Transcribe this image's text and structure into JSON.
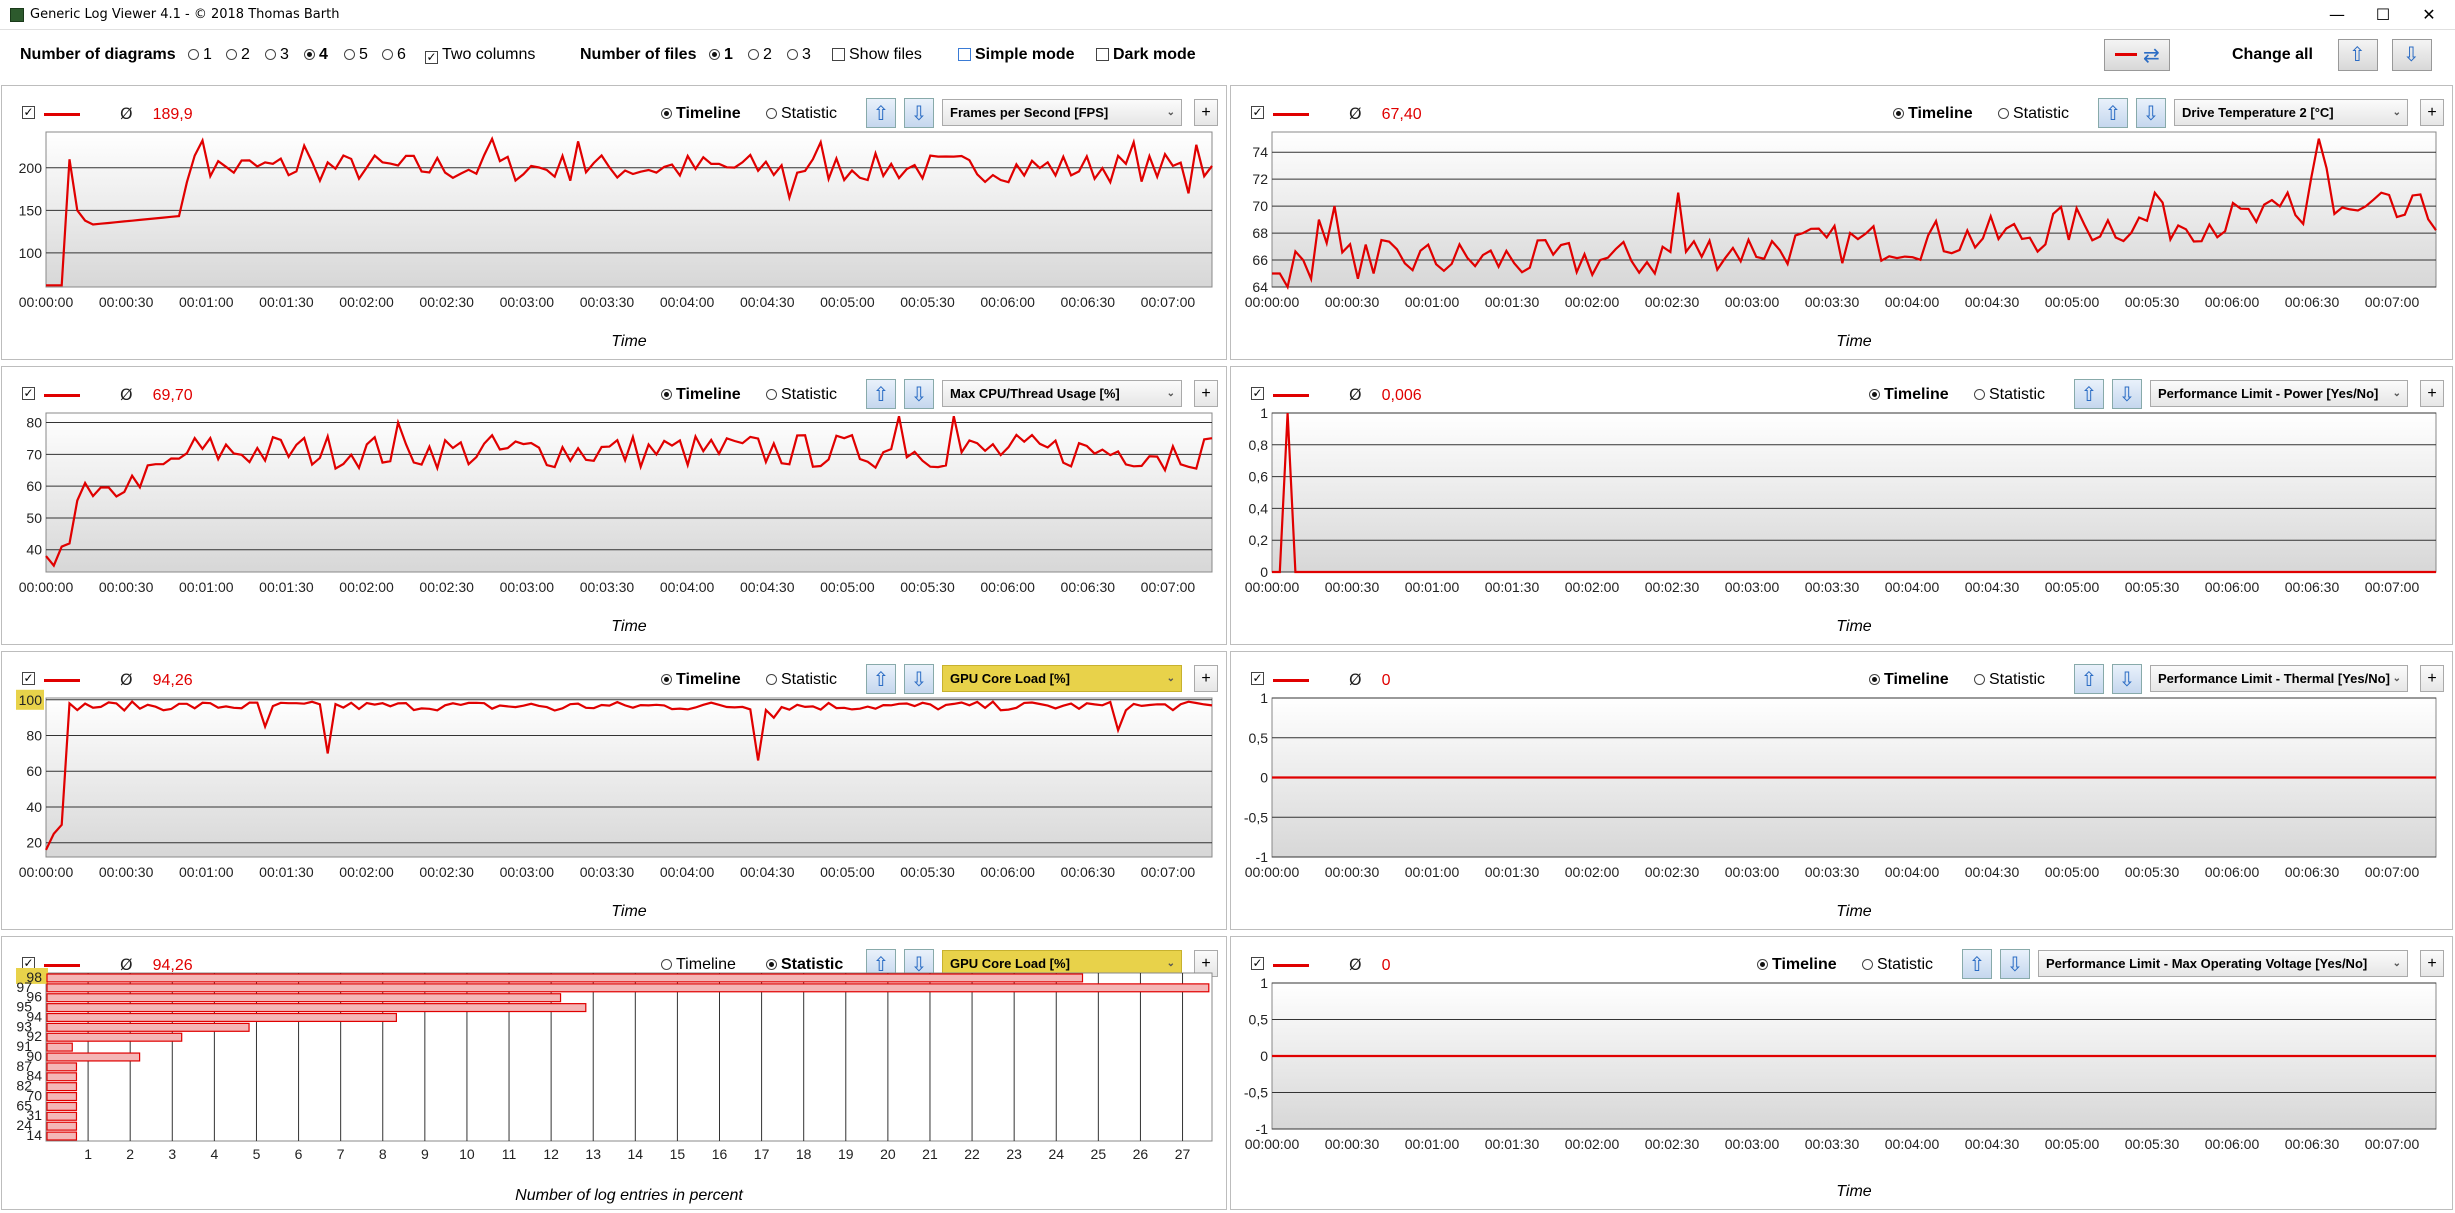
{
  "window": {
    "title": "Generic Log Viewer 4.1 - © 2018 Thomas Barth",
    "min": "—",
    "max": "☐",
    "close": "✕"
  },
  "toolbar": {
    "diagrams_label": "Number of diagrams",
    "diagram_options": [
      "1",
      "2",
      "3",
      "4",
      "5",
      "6"
    ],
    "diagram_selected": "4",
    "two_columns": "Two columns",
    "files_label": "Number of files",
    "file_options": [
      "1",
      "2",
      "3"
    ],
    "file_selected": "1",
    "show_files": "Show files",
    "simple_mode": "Simple mode",
    "dark_mode": "Dark mode",
    "change_all": "Change all"
  },
  "colors": {
    "series": "#e00000",
    "highlight": "#e8d24a",
    "arrow": "#2b6cc4"
  },
  "ui": {
    "timeline": "Timeline",
    "statistic": "Statistic",
    "avg": "Ø",
    "plus": "+",
    "x_title": "Time",
    "stat_x_title": "Number of log entries in percent"
  },
  "time_ticks": [
    "00:00:00",
    "00:00:30",
    "00:01:00",
    "00:01:30",
    "00:02:00",
    "00:02:30",
    "00:03:00",
    "00:03:30",
    "00:04:00",
    "00:04:30",
    "00:05:00",
    "00:05:30",
    "00:06:00",
    "00:06:30",
    "00:07:00"
  ],
  "panels": [
    {
      "metric": "Frames per Second [FPS]",
      "avg": "189,9",
      "mode": "Timeline",
      "highlight": false,
      "x_title": "Time",
      "chart_data": {
        "type": "line",
        "ylim": [
          60,
          242
        ],
        "yticks": [
          "100",
          "150",
          "200"
        ],
        "yvals": [
          100,
          150,
          200
        ],
        "shape": "fps",
        "base": 205,
        "amp": 14
      }
    },
    {
      "metric": "Drive Temperature 2 [°C]",
      "avg": "67,40",
      "mode": "Timeline",
      "highlight": false,
      "x_title": "Time",
      "chart_data": {
        "type": "line",
        "ylim": [
          64,
          75.5
        ],
        "yticks": [
          "64",
          "66",
          "68",
          "70",
          "72",
          "74"
        ],
        "yvals": [
          64,
          66,
          68,
          70,
          72,
          74
        ],
        "shape": "temp"
      }
    },
    {
      "metric": "Max CPU/Thread Usage [%]",
      "avg": "69,70",
      "mode": "Timeline",
      "highlight": false,
      "x_title": "Time",
      "chart_data": {
        "type": "line",
        "ylim": [
          33,
          83
        ],
        "yticks": [
          "40",
          "50",
          "60",
          "70",
          "80"
        ],
        "yvals": [
          40,
          50,
          60,
          70,
          80
        ],
        "shape": "cpu"
      }
    },
    {
      "metric": "Performance Limit - Power [Yes/No]",
      "avg": "0,006",
      "mode": "Timeline",
      "highlight": false,
      "x_title": "Time",
      "chart_data": {
        "type": "line",
        "ylim": [
          0,
          1
        ],
        "yticks": [
          "0",
          "0,2",
          "0,4",
          "0,6",
          "0,8",
          "1"
        ],
        "yvals": [
          0,
          0.2,
          0.4,
          0.6,
          0.8,
          1
        ],
        "shape": "power"
      }
    },
    {
      "metric": "GPU Core Load [%]",
      "avg": "94,26",
      "mode": "Timeline",
      "highlight": true,
      "x_title": "Time",
      "chart_data": {
        "type": "line",
        "ylim": [
          12,
          101
        ],
        "yticks": [
          "20",
          "40",
          "60",
          "80",
          "100"
        ],
        "yvals": [
          20,
          40,
          60,
          80,
          100
        ],
        "shape": "gpu",
        "hl_tick": "100"
      }
    },
    {
      "metric": "Performance Limit - Thermal [Yes/No]",
      "avg": "0",
      "mode": "Timeline",
      "highlight": false,
      "x_title": "Time",
      "chart_data": {
        "type": "line",
        "ylim": [
          -1,
          1
        ],
        "yticks": [
          "-1",
          "-0,5",
          "0",
          "0,5",
          "1"
        ],
        "yvals": [
          -1,
          -0.5,
          0,
          0.5,
          1
        ],
        "shape": "zero"
      }
    },
    {
      "metric": "GPU Core Load [%]",
      "avg": "94,26",
      "mode": "Statistic",
      "highlight": true,
      "x_title": "Number of log entries in percent",
      "chart_data": {
        "type": "bar",
        "orientation": "horizontal",
        "hl_tick": "98",
        "categories": [
          "98",
          "97",
          "96",
          "95",
          "94",
          "93",
          "92",
          "91",
          "90",
          "87",
          "84",
          "82",
          "70",
          "65",
          "31",
          "24",
          "14"
        ],
        "values": [
          24.6,
          27.6,
          12.2,
          12.8,
          8.3,
          4.8,
          3.2,
          0.6,
          2.2,
          0.7,
          0.7,
          0.7,
          0.7,
          0.7,
          0.7,
          0.7,
          0.7
        ],
        "xticks": [
          "1",
          "2",
          "3",
          "4",
          "5",
          "6",
          "7",
          "8",
          "9",
          "10",
          "11",
          "12",
          "13",
          "14",
          "15",
          "16",
          "17",
          "18",
          "19",
          "20",
          "21",
          "22",
          "23",
          "24",
          "25",
          "26",
          "27"
        ],
        "xlim": [
          0,
          27.7
        ]
      }
    },
    {
      "metric": "Performance Limit - Max Operating Voltage [Yes/No]",
      "avg": "0",
      "mode": "Timeline",
      "highlight": false,
      "x_title": "Time",
      "chart_data": {
        "type": "line",
        "ylim": [
          -1,
          1
        ],
        "yticks": [
          "-1",
          "-0,5",
          "0",
          "0,5",
          "1"
        ],
        "yvals": [
          -1,
          -0.5,
          0,
          0.5,
          1
        ],
        "shape": "zero"
      }
    }
  ]
}
